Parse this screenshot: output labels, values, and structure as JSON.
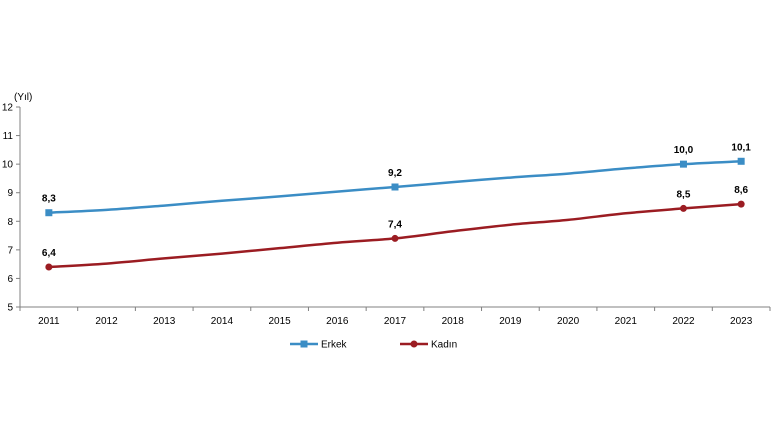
{
  "chart_data": {
    "type": "line",
    "title": "",
    "xlabel": "",
    "ylabel": "",
    "y_unit_label": "(Yıl)",
    "x": [
      "2011",
      "2012",
      "2013",
      "2014",
      "2015",
      "2016",
      "2017",
      "2018",
      "2019",
      "2020",
      "2021",
      "2022",
      "2023"
    ],
    "ylim": [
      5,
      12
    ],
    "yticks": [
      "5",
      "6",
      "7",
      "8",
      "9",
      "10",
      "11",
      "12"
    ],
    "grid": false,
    "legend_position": "bottom",
    "series": [
      {
        "name": "Erkek",
        "color": "#3B8DC5",
        "marker": "square",
        "values": [
          8.3,
          8.4,
          8.55,
          8.72,
          8.87,
          9.04,
          9.2,
          9.37,
          9.53,
          9.67,
          9.85,
          10.0,
          10.1
        ],
        "labels": [
          {
            "index": 0,
            "text": "8,3"
          },
          {
            "index": 6,
            "text": "9,2"
          },
          {
            "index": 11,
            "text": "10,0"
          },
          {
            "index": 12,
            "text": "10,1"
          }
        ]
      },
      {
        "name": "Kadın",
        "color": "#9B1C22",
        "marker": "circle",
        "values": [
          6.4,
          6.52,
          6.7,
          6.87,
          7.06,
          7.25,
          7.4,
          7.65,
          7.88,
          8.05,
          8.28,
          8.45,
          8.6
        ],
        "labels": [
          {
            "index": 0,
            "text": "6,4"
          },
          {
            "index": 6,
            "text": "7,4"
          },
          {
            "index": 11,
            "text": "8,5"
          },
          {
            "index": 12,
            "text": "8,6"
          }
        ]
      }
    ]
  }
}
